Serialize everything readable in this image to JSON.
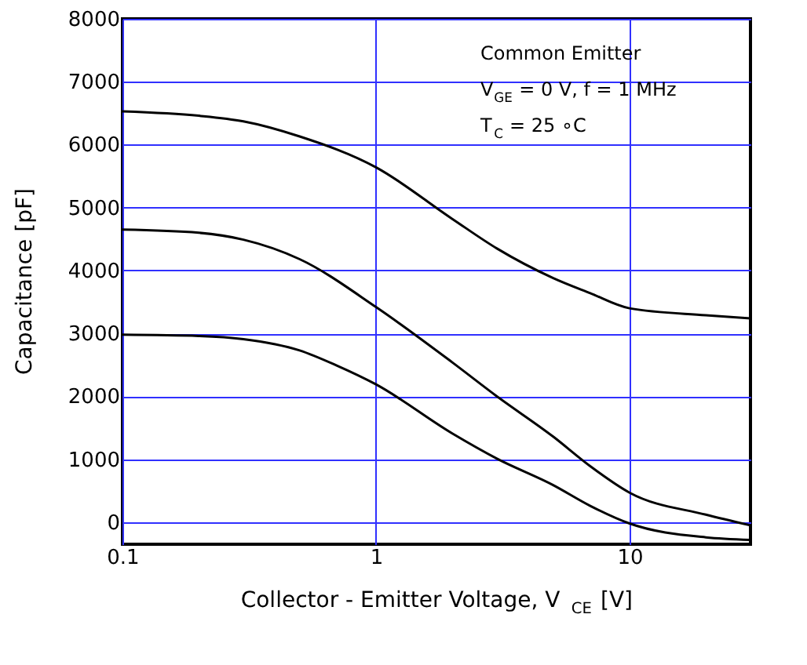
{
  "chart_data": {
    "type": "line",
    "xlabel": "Collector - Emitter Voltage, V$_{CE}$ [V]",
    "ylabel": "Capacitance [pF]",
    "log": "x",
    "grid": true,
    "marker": "none",
    "line_style": "solid",
    "xlim": [
      0.1,
      30
    ],
    "xticks": [
      0.1,
      1,
      10
    ],
    "ylim": [
      -350,
      8000
    ],
    "yticks": [
      0,
      1000,
      2000,
      3000,
      4000,
      5000,
      6000,
      7000,
      8000
    ],
    "annotations": [
      "Common Emitter",
      "V$_{GE}$ = 0 V, f = 1 MHz",
      "T$_{C}$ = 25 ∘C"
    ],
    "series": [
      {
        "color": "#000000",
        "x": [
          0.1,
          0.2,
          0.3,
          0.5,
          1,
          2,
          3,
          5,
          7,
          10,
          20,
          30
        ],
        "values": [
          6530,
          6460,
          6370,
          6130,
          5640,
          4820,
          4350,
          3880,
          3640,
          3400,
          3290,
          3240
        ]
      },
      {
        "color": "#000000",
        "x": [
          0.1,
          0.2,
          0.3,
          0.5,
          1,
          2,
          3,
          5,
          7,
          10,
          20,
          30
        ],
        "values": [
          4650,
          4600,
          4490,
          4180,
          3420,
          2540,
          2000,
          1360,
          890,
          470,
          120,
          -50
        ]
      },
      {
        "color": "#000000",
        "x": [
          0.1,
          0.2,
          0.3,
          0.5,
          0.7,
          1,
          2,
          3,
          5,
          7,
          10,
          20,
          30
        ],
        "values": [
          2980,
          2960,
          2910,
          2730,
          2490,
          2190,
          1410,
          1010,
          590,
          260,
          -20,
          -240,
          -280
        ]
      }
    ]
  }
}
